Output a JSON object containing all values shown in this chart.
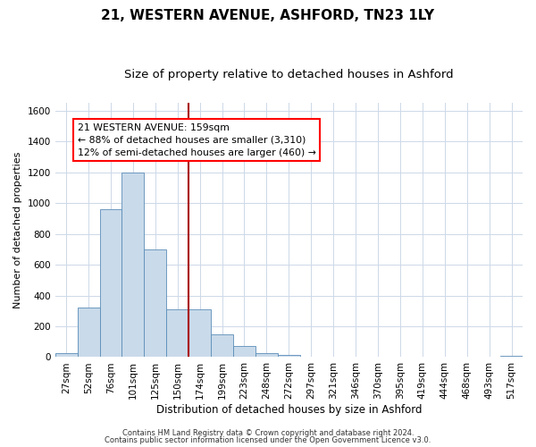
{
  "title": "21, WESTERN AVENUE, ASHFORD, TN23 1LY",
  "subtitle": "Size of property relative to detached houses in Ashford",
  "xlabel": "Distribution of detached houses by size in Ashford",
  "ylabel": "Number of detached properties",
  "bar_labels": [
    "27sqm",
    "52sqm",
    "76sqm",
    "101sqm",
    "125sqm",
    "150sqm",
    "174sqm",
    "199sqm",
    "223sqm",
    "248sqm",
    "272sqm",
    "297sqm",
    "321sqm",
    "346sqm",
    "370sqm",
    "395sqm",
    "419sqm",
    "444sqm",
    "468sqm",
    "493sqm",
    "517sqm"
  ],
  "bar_values": [
    25,
    320,
    960,
    1200,
    700,
    310,
    310,
    150,
    75,
    25,
    15,
    5,
    0,
    5,
    0,
    5,
    0,
    0,
    0,
    0,
    10
  ],
  "bar_color": "#c9daea",
  "bar_edge_color": "#5b8db8",
  "ylim": [
    0,
    1650
  ],
  "yticks": [
    0,
    200,
    400,
    600,
    800,
    1000,
    1200,
    1400,
    1600
  ],
  "vline_index": 6,
  "vline_color": "#aa0000",
  "annotation_text_line1": "21 WESTERN AVENUE: 159sqm",
  "annotation_text_line2": "← 88% of detached houses are smaller (3,310)",
  "annotation_text_line3": "12% of semi-detached houses are larger (460) →",
  "footer_line1": "Contains HM Land Registry data © Crown copyright and database right 2024.",
  "footer_line2": "Contains public sector information licensed under the Open Government Licence v3.0.",
  "bg_color": "#ffffff",
  "grid_color": "#cdd8e8",
  "title_fontsize": 11,
  "subtitle_fontsize": 9.5,
  "axis_label_fontsize": 8.5,
  "tick_fontsize": 7.5,
  "footer_fontsize": 6,
  "ylabel_fontsize": 8
}
